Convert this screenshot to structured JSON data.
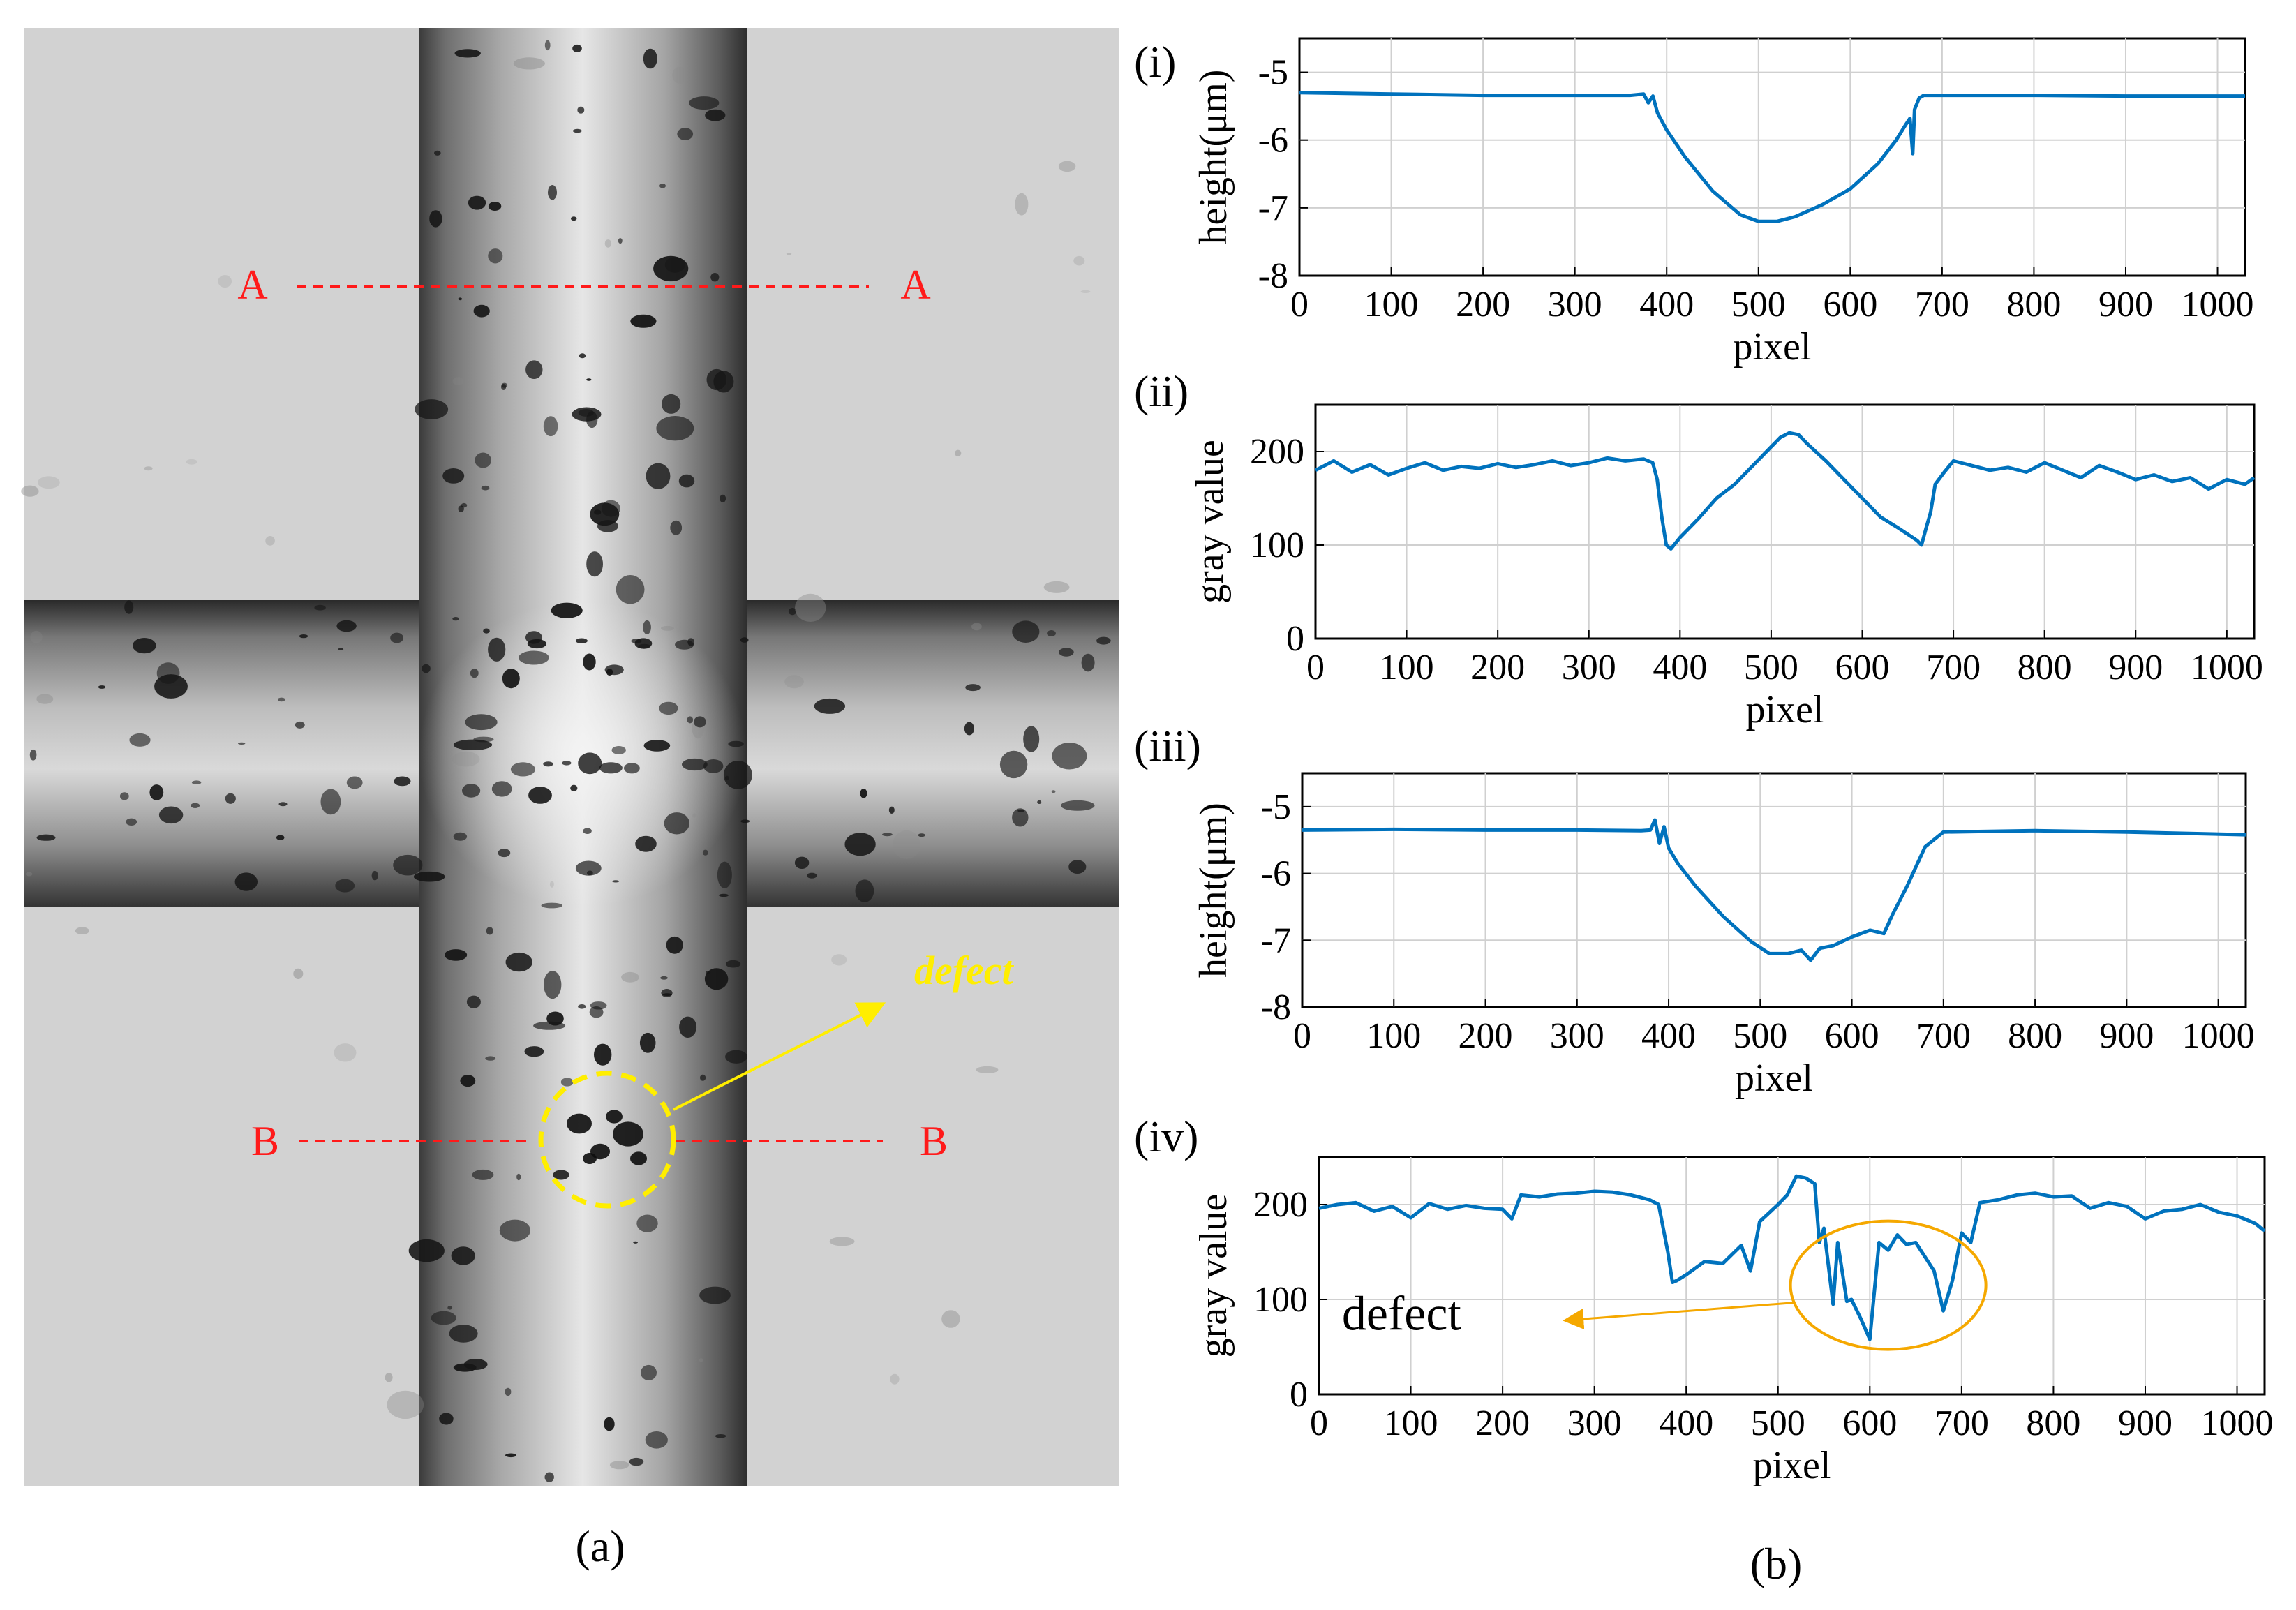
{
  "figure": {
    "panel_a": {
      "caption": "(a)",
      "line_a_left": "A",
      "line_a_right": "A",
      "line_b_left": "B",
      "line_b_right": "B",
      "defect_label": "defect",
      "colors": {
        "section_line": "#ff1a1a",
        "defect_marker": "#ffee00"
      }
    },
    "panel_b": {
      "caption": "(b)"
    }
  },
  "chart_data": [
    {
      "id": "i",
      "panel_label": "(i)",
      "type": "line",
      "xlabel": "pixel",
      "ylabel": "height(μm)",
      "xlim": [
        0,
        1030
      ],
      "ylim": [
        -8,
        -4.5
      ],
      "xticks": [
        0,
        100,
        200,
        300,
        400,
        500,
        600,
        700,
        800,
        900,
        1000
      ],
      "xtick_labels": [
        "0",
        "100",
        "200",
        "300",
        "400",
        "500",
        "600",
        "700",
        "800",
        "900",
        "1000"
      ],
      "yticks": [
        -8,
        -7,
        -6,
        -5
      ],
      "ytick_labels": [
        "-8",
        "-7",
        "-6",
        "-5"
      ],
      "grid": true,
      "color": "#0072BD",
      "series": [
        {
          "name": "height A-A",
          "x": [
            0,
            100,
            200,
            300,
            360,
            375,
            380,
            385,
            390,
            400,
            420,
            450,
            480,
            500,
            520,
            540,
            570,
            600,
            630,
            650,
            660,
            665,
            668,
            670,
            675,
            680,
            700,
            800,
            900,
            1030
          ],
          "y": [
            -5.3,
            -5.32,
            -5.34,
            -5.34,
            -5.34,
            -5.32,
            -5.45,
            -5.35,
            -5.6,
            -5.85,
            -6.25,
            -6.75,
            -7.1,
            -7.2,
            -7.2,
            -7.13,
            -6.95,
            -6.72,
            -6.35,
            -6.0,
            -5.78,
            -5.68,
            -6.2,
            -5.55,
            -5.38,
            -5.34,
            -5.34,
            -5.34,
            -5.35,
            -5.35
          ]
        }
      ]
    },
    {
      "id": "ii",
      "panel_label": "(ii)",
      "type": "line",
      "xlabel": "pixel",
      "ylabel": "gray value",
      "xlim": [
        0,
        1030
      ],
      "ylim": [
        0,
        250
      ],
      "xticks": [
        0,
        100,
        200,
        300,
        400,
        500,
        600,
        700,
        800,
        900,
        1000
      ],
      "xtick_labels": [
        "0",
        "100",
        "200",
        "300",
        "400",
        "500",
        "600",
        "700",
        "800",
        "900",
        "1000"
      ],
      "yticks": [
        0,
        100,
        200
      ],
      "ytick_labels": [
        "0",
        "100",
        "200"
      ],
      "grid": true,
      "color": "#0072BD",
      "series": [
        {
          "name": "gray A-A",
          "x": [
            0,
            20,
            40,
            60,
            80,
            100,
            120,
            140,
            160,
            180,
            200,
            220,
            240,
            260,
            280,
            300,
            320,
            340,
            360,
            370,
            375,
            380,
            385,
            390,
            400,
            420,
            440,
            460,
            480,
            500,
            510,
            520,
            530,
            540,
            560,
            580,
            600,
            620,
            640,
            660,
            665,
            670,
            675,
            680,
            690,
            700,
            720,
            740,
            760,
            780,
            800,
            820,
            840,
            860,
            880,
            900,
            920,
            940,
            960,
            980,
            1000,
            1020,
            1030
          ],
          "y": [
            180,
            190,
            178,
            186,
            175,
            182,
            188,
            180,
            184,
            182,
            187,
            183,
            186,
            190,
            185,
            188,
            193,
            190,
            192,
            188,
            170,
            130,
            100,
            96,
            108,
            128,
            150,
            165,
            185,
            205,
            215,
            220,
            218,
            208,
            190,
            170,
            150,
            130,
            118,
            105,
            100,
            118,
            135,
            165,
            178,
            190,
            185,
            180,
            183,
            178,
            188,
            180,
            172,
            185,
            178,
            170,
            175,
            168,
            172,
            160,
            170,
            165,
            172
          ]
        }
      ]
    },
    {
      "id": "iii",
      "panel_label": "(iii)",
      "type": "line",
      "xlabel": "pixel",
      "ylabel": "height(μm)",
      "xlim": [
        0,
        1030
      ],
      "ylim": [
        -8,
        -4.5
      ],
      "xticks": [
        0,
        100,
        200,
        300,
        400,
        500,
        600,
        700,
        800,
        900,
        1000
      ],
      "xtick_labels": [
        "0",
        "100",
        "200",
        "300",
        "400",
        "500",
        "600",
        "700",
        "800",
        "900",
        "1000"
      ],
      "yticks": [
        -8,
        -7,
        -6,
        -5
      ],
      "ytick_labels": [
        "-8",
        "-7",
        "-6",
        "-5"
      ],
      "grid": true,
      "color": "#0072BD",
      "series": [
        {
          "name": "height B-B",
          "x": [
            0,
            100,
            200,
            300,
            370,
            380,
            385,
            390,
            395,
            400,
            410,
            430,
            460,
            490,
            510,
            530,
            545,
            555,
            565,
            580,
            600,
            620,
            635,
            645,
            660,
            680,
            700,
            800,
            900,
            1030
          ],
          "y": [
            -5.35,
            -5.34,
            -5.35,
            -5.35,
            -5.36,
            -5.35,
            -5.2,
            -5.55,
            -5.3,
            -5.62,
            -5.85,
            -6.2,
            -6.65,
            -7.02,
            -7.2,
            -7.2,
            -7.15,
            -7.3,
            -7.12,
            -7.08,
            -6.95,
            -6.85,
            -6.9,
            -6.6,
            -6.2,
            -5.6,
            -5.38,
            -5.36,
            -5.38,
            -5.42
          ]
        }
      ]
    },
    {
      "id": "iv",
      "panel_label": "(iv)",
      "type": "line",
      "xlabel": "pixel",
      "ylabel": "gray value",
      "xlim": [
        0,
        1030
      ],
      "ylim": [
        0,
        250
      ],
      "xticks": [
        0,
        100,
        200,
        300,
        400,
        500,
        600,
        700,
        800,
        900,
        1000
      ],
      "xtick_labels": [
        "0",
        "100",
        "200",
        "300",
        "400",
        "500",
        "600",
        "700",
        "800",
        "900",
        "1000"
      ],
      "yticks": [
        0,
        100,
        200
      ],
      "ytick_labels": [
        "0",
        "100",
        "200"
      ],
      "grid": true,
      "color": "#0072BD",
      "annotation": {
        "text": "defect",
        "color": "#F5A800",
        "ellipse_center": [
          620,
          115
        ]
      },
      "series": [
        {
          "name": "gray B-B",
          "x": [
            0,
            20,
            40,
            60,
            80,
            100,
            120,
            140,
            160,
            180,
            200,
            210,
            220,
            240,
            260,
            280,
            300,
            320,
            340,
            360,
            370,
            380,
            385,
            390,
            400,
            420,
            440,
            460,
            470,
            480,
            500,
            510,
            520,
            530,
            540,
            545,
            550,
            560,
            565,
            575,
            580,
            590,
            600,
            610,
            620,
            630,
            640,
            650,
            660,
            670,
            680,
            690,
            700,
            710,
            720,
            740,
            760,
            780,
            800,
            820,
            840,
            860,
            880,
            900,
            920,
            940,
            960,
            980,
            1000,
            1020,
            1030
          ],
          "y": [
            196,
            200,
            202,
            193,
            198,
            186,
            201,
            195,
            199,
            196,
            195,
            185,
            210,
            208,
            211,
            212,
            214,
            213,
            210,
            205,
            200,
            150,
            118,
            120,
            126,
            140,
            138,
            157,
            130,
            182,
            200,
            210,
            230,
            228,
            222,
            160,
            175,
            95,
            160,
            98,
            100,
            80,
            58,
            160,
            152,
            168,
            158,
            160,
            145,
            130,
            88,
            120,
            170,
            160,
            202,
            205,
            210,
            212,
            208,
            209,
            196,
            202,
            198,
            185,
            193,
            195,
            200,
            192,
            188,
            180,
            172
          ]
        }
      ]
    }
  ]
}
